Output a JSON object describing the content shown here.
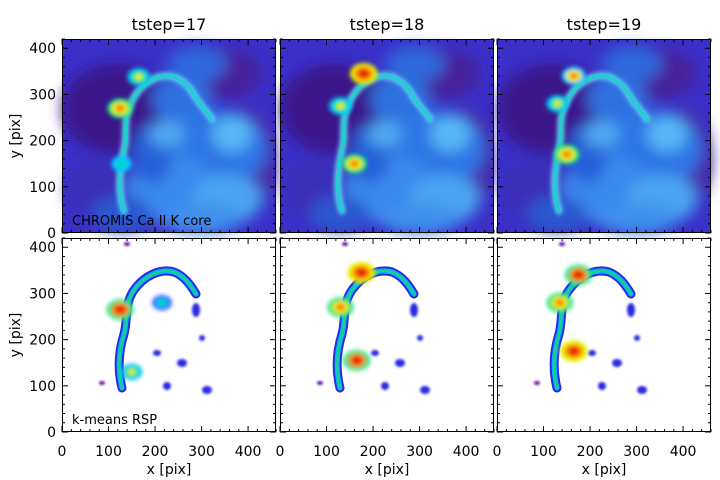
{
  "figure": {
    "panel_titles": [
      "tstep=17",
      "tstep=18",
      "tstep=19"
    ],
    "row_labels": [
      "CHROMIS Ca II K core",
      "k-means RSP"
    ],
    "ylabel": "y [pix]",
    "xlabel": "x [pix]",
    "x_ticks": [
      "0",
      "100",
      "200",
      "300",
      "400"
    ],
    "y_ticks": [
      "0",
      "100",
      "200",
      "300",
      "400"
    ]
  },
  "chart_data": [
    {
      "type": "heatmap",
      "title": "tstep=17",
      "annotation": "CHROMIS Ca II K core",
      "xlabel": "",
      "ylabel": "y [pix]",
      "xlim": [
        0,
        460
      ],
      "ylim": [
        0,
        420
      ],
      "colormap": "rainbow",
      "features": [
        {
          "x": 125,
          "y": 270,
          "level": 0.85
        },
        {
          "x": 165,
          "y": 338,
          "level": 0.7
        },
        {
          "x": 128,
          "y": 150,
          "level": 0.55
        }
      ]
    },
    {
      "type": "heatmap",
      "title": "tstep=18",
      "xlabel": "",
      "ylabel": "",
      "xlim": [
        0,
        460
      ],
      "ylim": [
        0,
        420
      ],
      "colormap": "rainbow",
      "features": [
        {
          "x": 180,
          "y": 345,
          "level": 0.95
        },
        {
          "x": 160,
          "y": 150,
          "level": 0.8
        },
        {
          "x": 130,
          "y": 275,
          "level": 0.7
        }
      ]
    },
    {
      "type": "heatmap",
      "title": "tstep=19",
      "xlabel": "",
      "ylabel": "",
      "xlim": [
        0,
        460
      ],
      "ylim": [
        0,
        420
      ],
      "colormap": "rainbow",
      "features": [
        {
          "x": 165,
          "y": 340,
          "level": 0.75
        },
        {
          "x": 150,
          "y": 170,
          "level": 0.85
        },
        {
          "x": 130,
          "y": 280,
          "level": 0.65
        }
      ]
    },
    {
      "type": "heatmap",
      "title": "",
      "annotation": "k-means RSP",
      "xlabel": "x [pix]",
      "ylabel": "y [pix]",
      "xlim": [
        0,
        460
      ],
      "ylim": [
        0,
        420
      ],
      "colormap": "rainbow",
      "features": [
        {
          "x": 125,
          "y": 265,
          "level": 0.9
        },
        {
          "x": 150,
          "y": 130,
          "level": 0.6
        },
        {
          "x": 215,
          "y": 280,
          "level": 0.5
        }
      ]
    },
    {
      "type": "heatmap",
      "title": "",
      "xlabel": "x [pix]",
      "ylabel": "",
      "xlim": [
        0,
        460
      ],
      "ylim": [
        0,
        420
      ],
      "colormap": "rainbow",
      "features": [
        {
          "x": 175,
          "y": 345,
          "level": 0.95
        },
        {
          "x": 165,
          "y": 155,
          "level": 0.9
        },
        {
          "x": 130,
          "y": 270,
          "level": 0.85
        }
      ]
    },
    {
      "type": "heatmap",
      "title": "",
      "xlabel": "x [pix]",
      "ylabel": "",
      "xlim": [
        0,
        460
      ],
      "ylim": [
        0,
        420
      ],
      "colormap": "rainbow",
      "features": [
        {
          "x": 165,
          "y": 175,
          "level": 0.95
        },
        {
          "x": 175,
          "y": 340,
          "level": 0.9
        },
        {
          "x": 135,
          "y": 280,
          "level": 0.85
        }
      ]
    }
  ]
}
